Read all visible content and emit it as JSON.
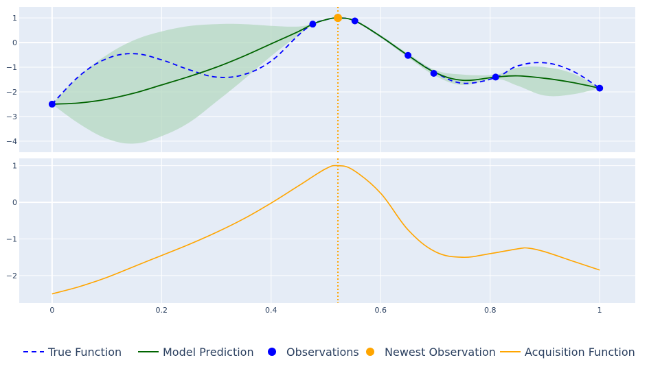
{
  "chart_data": {
    "type": "line",
    "x_label": "",
    "y_label": "",
    "x_range": [
      -0.06,
      1.065
    ],
    "x_ticks": [
      0,
      0.2,
      0.4,
      0.6,
      0.8,
      1
    ],
    "x_tick_labels": [
      "0",
      "0.2",
      "0.4",
      "0.6",
      "0.8",
      "1"
    ],
    "newest_x": 0.522,
    "colors": {
      "background": "#e5ecf6",
      "grid": "#ffffff",
      "text": "#2a3f5f",
      "true_function": "#0000ff",
      "model_prediction": "#006400",
      "uncertainty": "#b4d8c0",
      "observations": "#0000ff",
      "newest": "#ffa500",
      "acquisition": "#ffa500"
    },
    "panels": [
      {
        "name": "model",
        "y_range": [
          -4.45,
          1.45
        ],
        "y_ticks": [
          1,
          0,
          -1,
          -2,
          -3,
          -4
        ],
        "y_tick_labels": [
          "1",
          "0",
          "−1",
          "−2",
          "−3",
          "−4"
        ],
        "true_function": {
          "x": [
            0,
            0.05,
            0.1,
            0.15,
            0.2,
            0.25,
            0.3,
            0.35,
            0.4,
            0.45,
            0.476,
            0.5,
            0.522,
            0.553,
            0.6,
            0.65,
            0.7,
            0.75,
            0.81,
            0.85,
            0.9,
            0.95,
            1
          ],
          "y": [
            -2.5,
            -1.35,
            -0.65,
            -0.45,
            -0.7,
            -1.1,
            -1.4,
            -1.3,
            -0.75,
            0.3,
            0.75,
            0.93,
            1.0,
            0.88,
            0.25,
            -0.52,
            -1.22,
            -1.65,
            -1.42,
            -0.95,
            -0.82,
            -1.15,
            -1.85
          ]
        },
        "model_prediction": {
          "x": [
            0,
            0.05,
            0.1,
            0.15,
            0.2,
            0.25,
            0.3,
            0.35,
            0.4,
            0.45,
            0.476,
            0.5,
            0.522,
            0.553,
            0.6,
            0.65,
            0.7,
            0.75,
            0.81,
            0.85,
            0.9,
            0.95,
            1
          ],
          "y": [
            -2.5,
            -2.45,
            -2.3,
            -2.05,
            -1.72,
            -1.38,
            -1.0,
            -0.55,
            -0.05,
            0.45,
            0.75,
            0.93,
            1.0,
            0.88,
            0.25,
            -0.52,
            -1.22,
            -1.53,
            -1.4,
            -1.35,
            -1.45,
            -1.62,
            -1.85
          ]
        },
        "upper_bound": {
          "x": [
            0,
            0.05,
            0.1,
            0.15,
            0.2,
            0.25,
            0.3,
            0.35,
            0.4,
            0.45,
            0.476,
            0.5,
            0.522,
            0.553,
            0.6,
            0.65,
            0.7,
            0.75,
            0.81,
            0.85,
            0.9,
            0.95,
            1
          ],
          "y": [
            -2.5,
            -1.35,
            -0.5,
            0.1,
            0.45,
            0.67,
            0.75,
            0.75,
            0.68,
            0.65,
            0.78,
            0.95,
            1.0,
            0.9,
            0.3,
            -0.45,
            -1.12,
            -1.3,
            -1.3,
            -1.02,
            -1.0,
            -1.25,
            -1.85
          ]
        },
        "lower_bound": {
          "x": [
            1,
            0.95,
            0.9,
            0.85,
            0.81,
            0.75,
            0.7,
            0.65,
            0.6,
            0.553,
            0.522,
            0.5,
            0.476,
            0.45,
            0.4,
            0.35,
            0.3,
            0.25,
            0.2,
            0.15,
            0.1,
            0.05,
            0
          ],
          "y": [
            -1.85,
            -2.1,
            -2.15,
            -1.75,
            -1.48,
            -1.72,
            -1.35,
            -0.6,
            0.2,
            0.86,
            1.0,
            0.9,
            0.72,
            0.3,
            -0.55,
            -1.5,
            -2.4,
            -3.25,
            -3.8,
            -4.1,
            -3.9,
            -3.3,
            -2.5
          ]
        },
        "observations": {
          "x": [
            0,
            0.476,
            0.553,
            0.65,
            0.697,
            0.81,
            1
          ],
          "y": [
            -2.5,
            0.75,
            0.88,
            -0.52,
            -1.25,
            -1.4,
            -1.85
          ]
        },
        "newest_observation": {
          "x": 0.522,
          "y": 1.0
        }
      },
      {
        "name": "acquisition",
        "y_range": [
          -2.75,
          1.2
        ],
        "y_ticks": [
          1,
          0,
          -1,
          -2
        ],
        "y_tick_labels": [
          "1",
          "0",
          "−1",
          "−2"
        ],
        "acquisition": {
          "x": [
            0,
            0.05,
            0.1,
            0.15,
            0.2,
            0.25,
            0.3,
            0.35,
            0.4,
            0.45,
            0.5,
            0.522,
            0.55,
            0.6,
            0.65,
            0.7,
            0.75,
            0.8,
            0.85,
            0.87,
            0.9,
            0.95,
            1
          ],
          "y": [
            -2.5,
            -2.3,
            -2.05,
            -1.75,
            -1.45,
            -1.15,
            -0.82,
            -0.45,
            -0.02,
            0.45,
            0.92,
            1.0,
            0.88,
            0.25,
            -0.75,
            -1.35,
            -1.5,
            -1.4,
            -1.27,
            -1.25,
            -1.35,
            -1.6,
            -1.85
          ]
        }
      }
    ],
    "legend": {
      "position": "bottom",
      "items": [
        {
          "key": "true_function",
          "label": "True Function",
          "kind": "dash"
        },
        {
          "key": "model_prediction",
          "label": "Model Prediction",
          "kind": "line"
        },
        {
          "key": "observations",
          "label": "Observations",
          "kind": "marker"
        },
        {
          "key": "newest",
          "label": "Newest Observation",
          "kind": "marker"
        },
        {
          "key": "acquisition",
          "label": "Acquisition Function",
          "kind": "line"
        }
      ]
    }
  }
}
